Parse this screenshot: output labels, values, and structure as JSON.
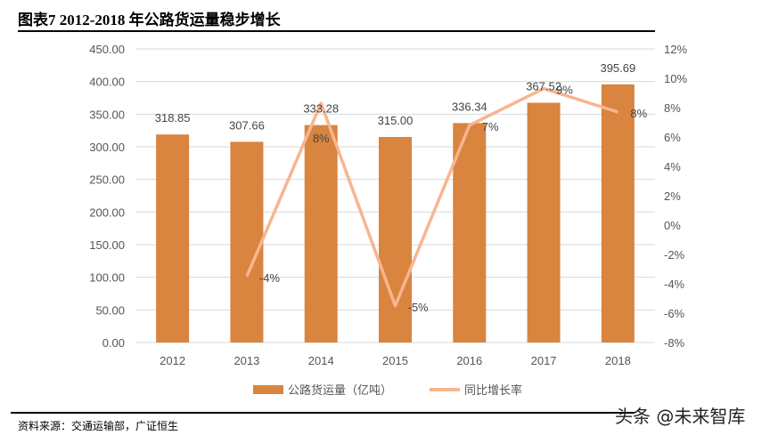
{
  "title": "图表7 2012-2018 年公路货运量稳步增长",
  "source": "资料来源：交通运输部，广证恒生",
  "watermark": "头条 @未来智库",
  "chart_data": {
    "type": "bar+line",
    "categories": [
      "2012",
      "2013",
      "2014",
      "2015",
      "2016",
      "2017",
      "2018"
    ],
    "series": [
      {
        "name": "公路货运量（亿吨）",
        "type": "bar",
        "axis": "left",
        "color": "#d9843f",
        "values": [
          318.85,
          307.66,
          333.28,
          315.0,
          336.34,
          367.52,
          395.69
        ],
        "labels": [
          "318.85",
          "307.66",
          "333.28",
          "315.00",
          "336.34",
          "367.52",
          "395.69"
        ]
      },
      {
        "name": "同比增长率",
        "type": "line",
        "axis": "right",
        "color": "#f8b58f",
        "values": [
          null,
          -3.5,
          8.3,
          -5.5,
          6.8,
          9.3,
          7.7
        ],
        "labels": [
          "",
          "-4%",
          "8%",
          "-5%",
          "7%",
          "9%",
          "8%"
        ]
      }
    ],
    "left_axis": {
      "ylim": [
        0,
        450
      ],
      "ticks": [
        "0.00",
        "50.00",
        "100.00",
        "150.00",
        "200.00",
        "250.00",
        "300.00",
        "350.00",
        "400.00",
        "450.00"
      ]
    },
    "right_axis": {
      "ylim": [
        -8,
        12
      ],
      "ticks": [
        "-8%",
        "-6%",
        "-4%",
        "-2%",
        "0%",
        "2%",
        "4%",
        "6%",
        "8%",
        "10%",
        "12%"
      ]
    },
    "grid": true,
    "legend": "bottom"
  }
}
